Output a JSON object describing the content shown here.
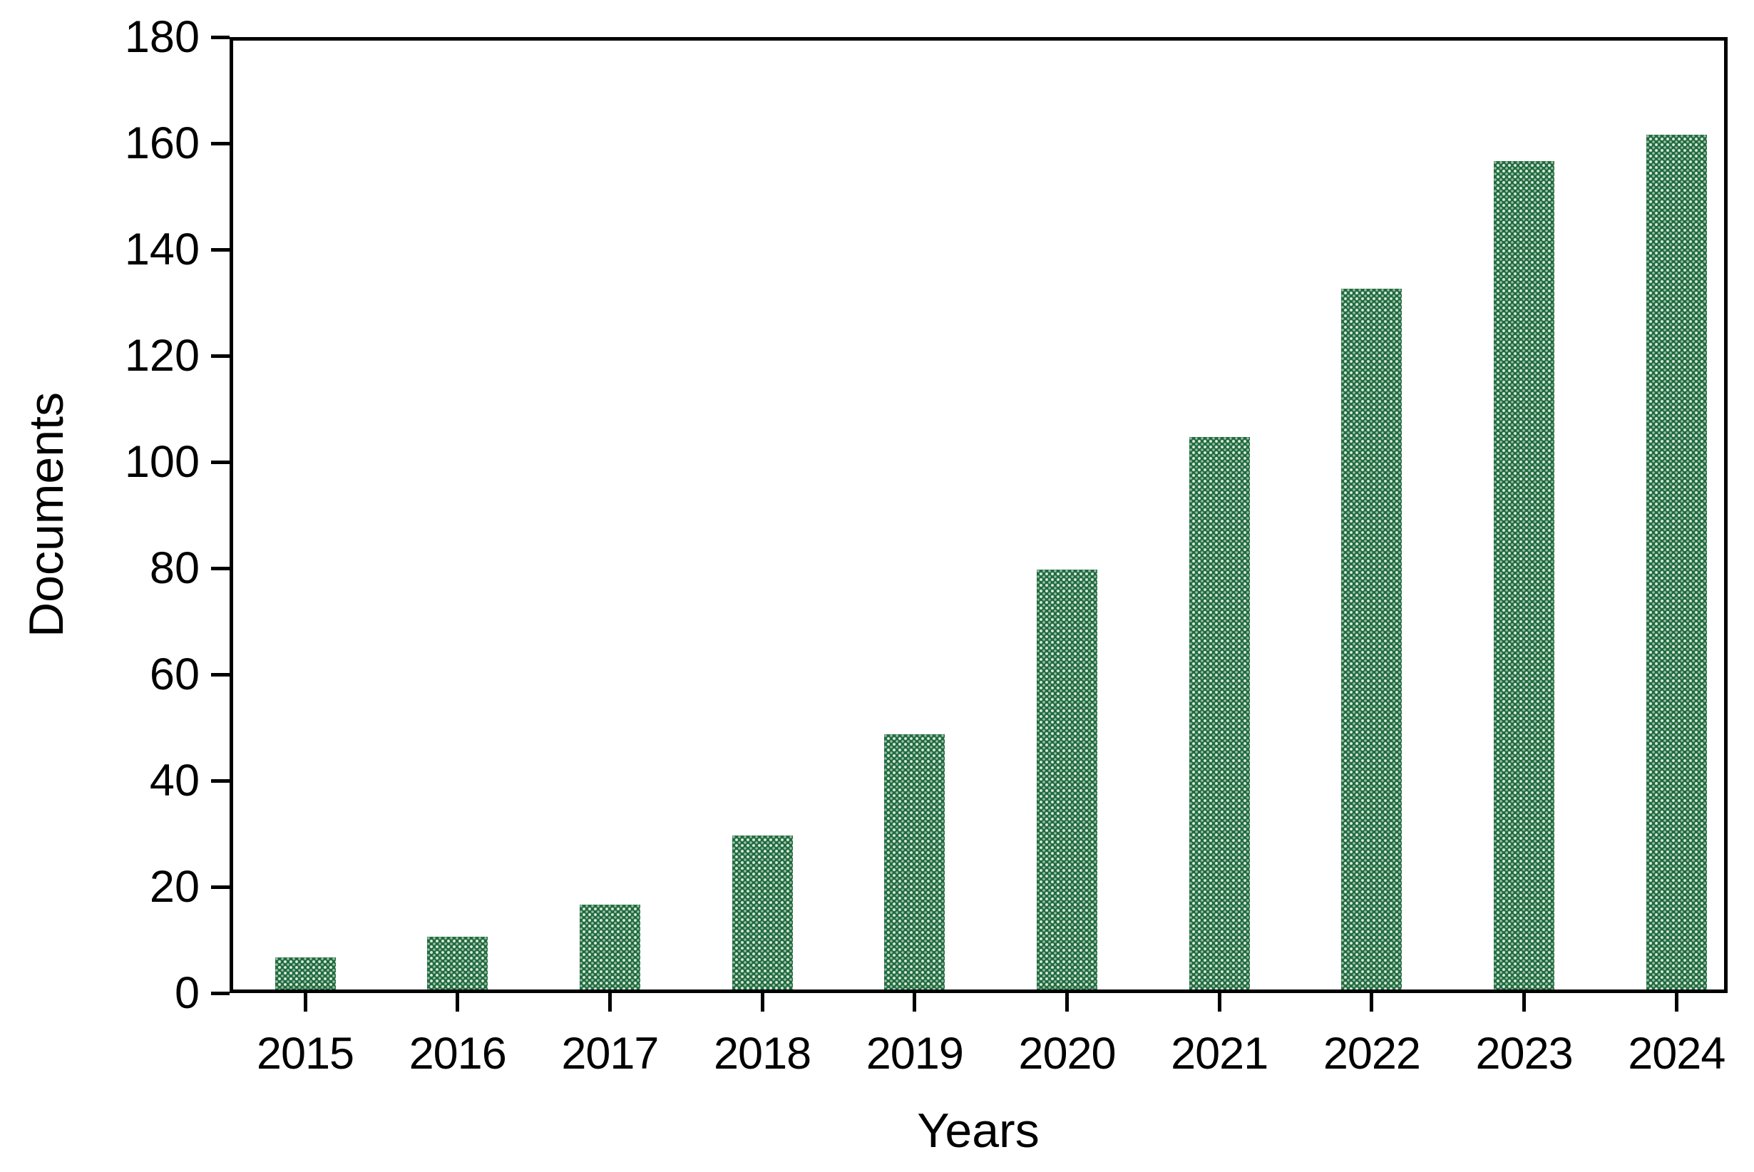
{
  "chart_data": {
    "type": "bar",
    "title": "",
    "categories": [
      "2015",
      "2016",
      "2017",
      "2018",
      "2019",
      "2020",
      "2021",
      "2022",
      "2023",
      "2024"
    ],
    "values": [
      6,
      10,
      16,
      29,
      48,
      79,
      104,
      132,
      156,
      161
    ],
    "xlabel": "Years",
    "ylabel": "Documents",
    "ylim": [
      0,
      180
    ],
    "yticks": [
      0,
      20,
      40,
      60,
      80,
      100,
      120,
      140,
      160,
      180
    ],
    "grid": false,
    "legend_position": "none",
    "bar_color": "#1e6b3c",
    "bar_pattern_dot_color": "#e9f3ec",
    "axis_color": "#000000",
    "background_color": "#ffffff"
  }
}
